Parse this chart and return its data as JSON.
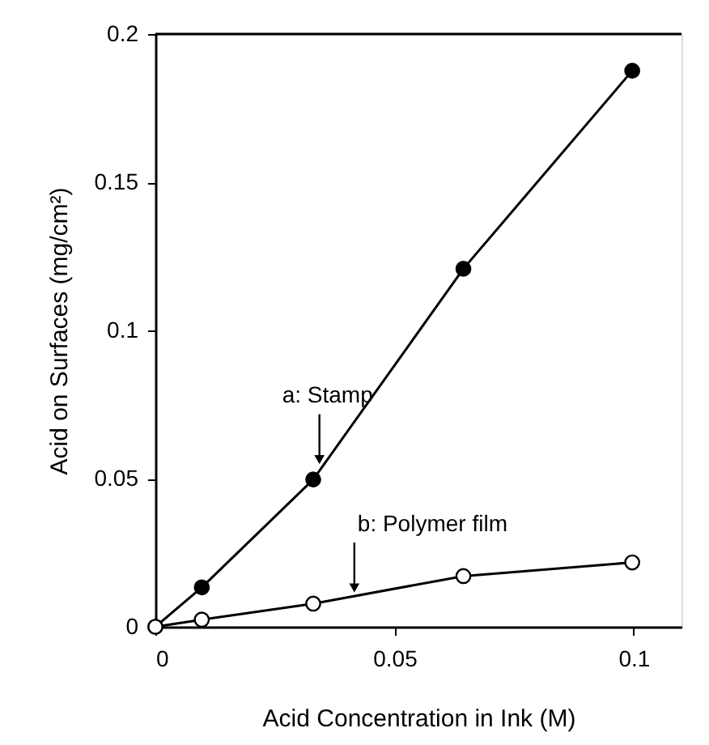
{
  "chart_data": {
    "type": "line",
    "xlabel": "Acid Concentration in Ink (M)",
    "ylabel": "Acid  on Surfaces (mg/cm²)",
    "xlim": [
      0,
      0.11
    ],
    "xticks": [
      0,
      0.05,
      0.1
    ],
    "ylim": [
      0,
      0.2
    ],
    "yticks": [
      0,
      0.05,
      0.1,
      0.15,
      0.2
    ],
    "grid": false,
    "marker": "circle",
    "line_style": "solid",
    "series": [
      {
        "color": "#000000",
        "x": [
          0,
          0.0097,
          0.033,
          0.0644,
          0.0997
        ],
        "values": [
          0,
          0.0133,
          0.0497,
          0.1208,
          0.1876
        ]
      },
      {
        "color": "#ffffff",
        "x": [
          0,
          0.0097,
          0.033,
          0.0644,
          0.0997
        ],
        "values": [
          0,
          0.0024,
          0.0078,
          0.0171,
          0.0217
        ]
      }
    ],
    "annotations": [
      {
        "text": "a: Stamp",
        "x": 0.0343,
        "y": 0.0526
      },
      {
        "text": "b: Polymer film",
        "x": 0.0416,
        "y": 0.0104
      }
    ]
  }
}
